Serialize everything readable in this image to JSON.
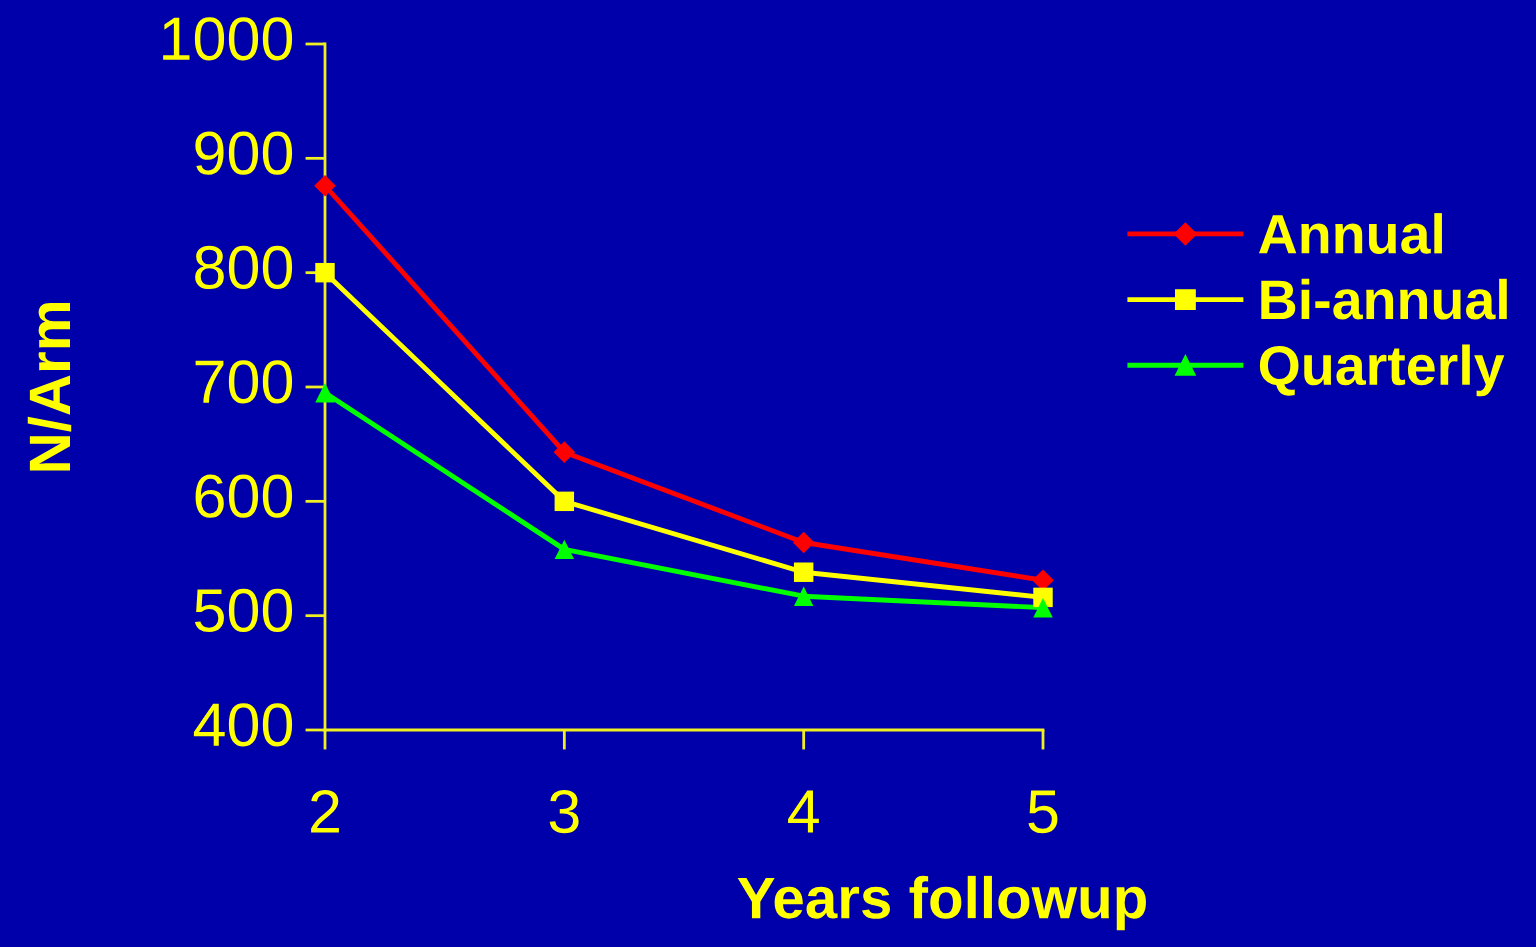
{
  "chart_data": {
    "type": "line",
    "xlabel": "Years followup",
    "ylabel": "N/Arm",
    "x": [
      2,
      3,
      4,
      5
    ],
    "xlim": [
      2,
      5
    ],
    "xticks": [
      2,
      3,
      4,
      5
    ],
    "ylim": [
      400,
      1000
    ],
    "yticks": [
      400,
      500,
      600,
      700,
      800,
      900,
      1000
    ],
    "grid": false,
    "legend": "right",
    "series": [
      {
        "name": "Annual",
        "color": "#ff0000",
        "marker": "diamond",
        "values": [
          876,
          643,
          564,
          531
        ]
      },
      {
        "name": "Bi-annual",
        "color": "#ffff00",
        "marker": "square",
        "values": [
          800,
          600,
          538,
          516
        ]
      },
      {
        "name": "Quarterly",
        "color": "#00ff00",
        "marker": "triangle",
        "values": [
          695,
          558,
          517,
          507
        ]
      }
    ]
  }
}
